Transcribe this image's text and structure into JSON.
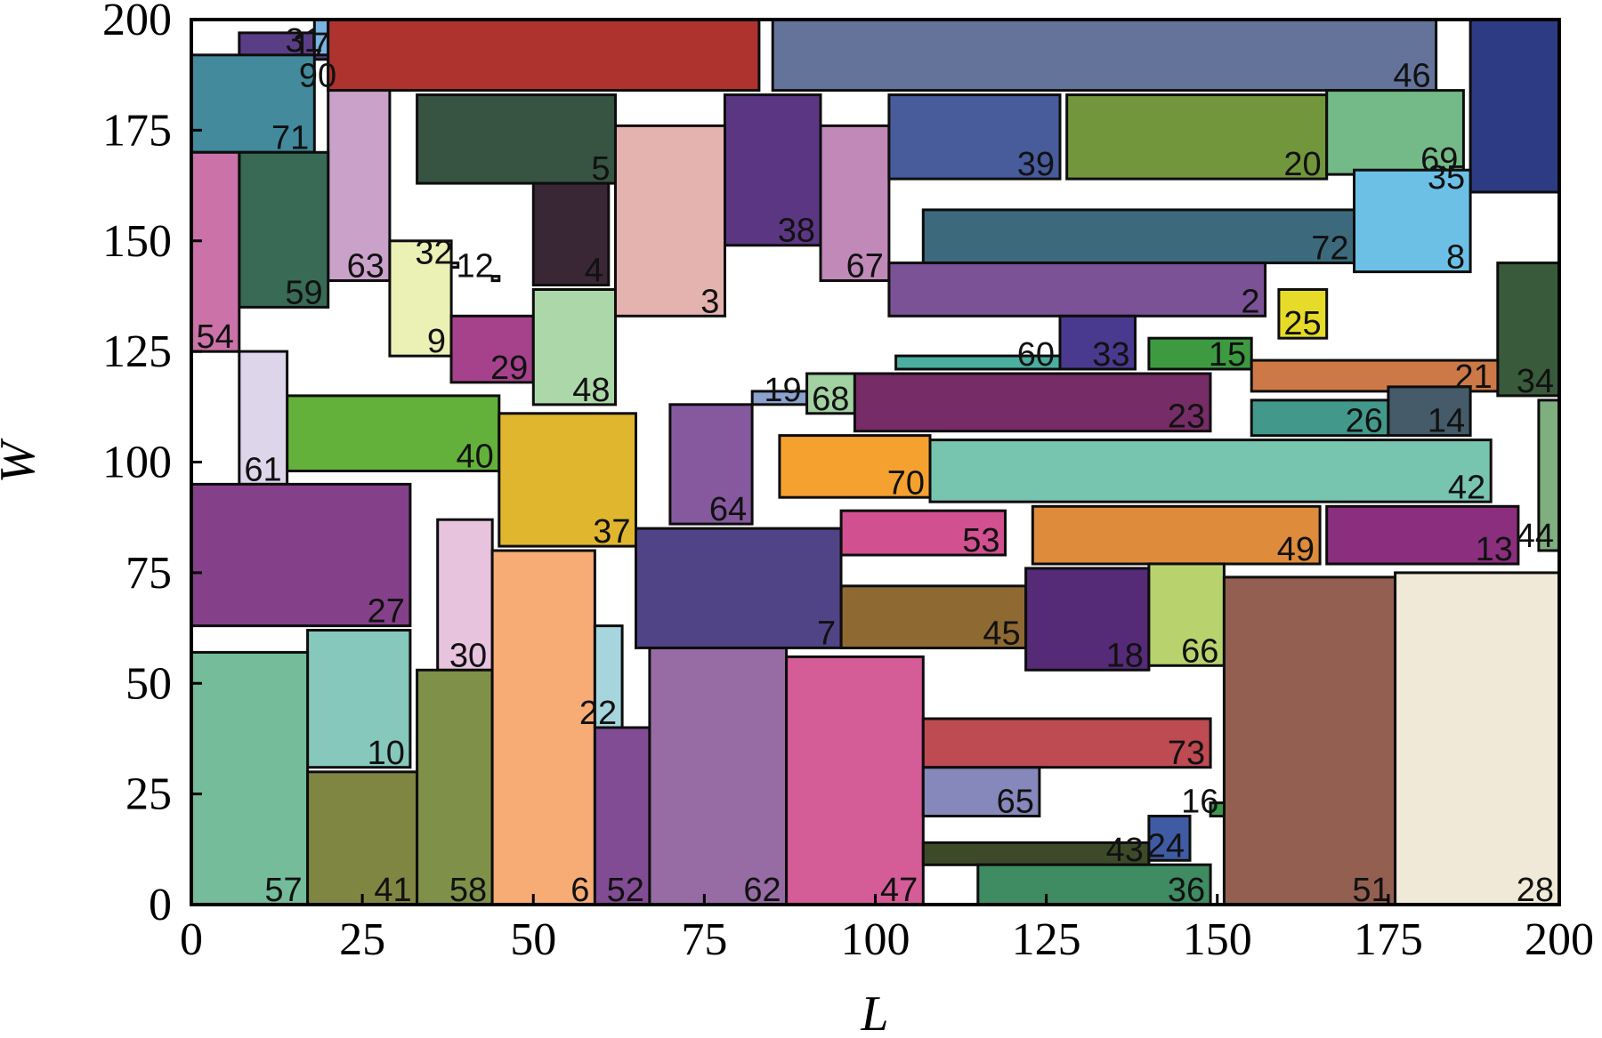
{
  "chart_data": {
    "type": "rectangle-packing",
    "xlabel": "L",
    "ylabel": "W",
    "xlim": [
      0,
      200
    ],
    "ylim": [
      0,
      200
    ],
    "xticks": [
      "0",
      "25",
      "50",
      "75",
      "100",
      "125",
      "150",
      "175",
      "200"
    ],
    "yticks": [
      "0",
      "25",
      "50",
      "75",
      "100",
      "125",
      "150",
      "175",
      "200"
    ],
    "rects": [
      {
        "id": "17",
        "x": 7,
        "y": 191,
        "w": 14,
        "h": 6,
        "color": "#5a3e85"
      },
      {
        "id": "31",
        "x": 18,
        "y": 192,
        "w": 2,
        "h": 8,
        "color": "#79b4e2"
      },
      {
        "id": "90",
        "x": 20,
        "y": 184,
        "w": 2,
        "h": 8,
        "color": "#e2e2e2"
      },
      {
        "id": "",
        "x": 20,
        "y": 184,
        "w": 63,
        "h": 16,
        "color": "#ae332f"
      },
      {
        "id": "46",
        "x": 85,
        "y": 184,
        "w": 97,
        "h": 16,
        "color": "#637399"
      },
      {
        "id": "",
        "x": 187,
        "y": 161,
        "w": 13,
        "h": 39,
        "color": "#2d3a84"
      },
      {
        "id": "71",
        "x": 0,
        "y": 170,
        "w": 18,
        "h": 22,
        "color": "#428a9c"
      },
      {
        "id": "5",
        "x": 33,
        "y": 163,
        "w": 29,
        "h": 20,
        "color": "#375342"
      },
      {
        "id": "63",
        "x": 20,
        "y": 141,
        "w": 9,
        "h": 43,
        "color": "#c9a1c9"
      },
      {
        "id": "59",
        "x": 7,
        "y": 135,
        "w": 13,
        "h": 35,
        "color": "#386a55"
      },
      {
        "id": "54",
        "x": 0,
        "y": 125,
        "w": 7,
        "h": 45,
        "color": "#cb72a8"
      },
      {
        "id": "38",
        "x": 78,
        "y": 149,
        "w": 14,
        "h": 34,
        "color": "#5b3783"
      },
      {
        "id": "67",
        "x": 92,
        "y": 141,
        "w": 10,
        "h": 35,
        "color": "#c089b8"
      },
      {
        "id": "39",
        "x": 102,
        "y": 164,
        "w": 25,
        "h": 19,
        "color": "#485b9b"
      },
      {
        "id": "20",
        "x": 128,
        "y": 164,
        "w": 38,
        "h": 19,
        "color": "#72963c"
      },
      {
        "id": "69",
        "x": 166,
        "y": 165,
        "w": 20,
        "h": 19,
        "color": "#74ba88"
      },
      {
        "id": "35",
        "x": 186,
        "y": 161,
        "w": 1,
        "h": 4,
        "color": "#2d3a84"
      },
      {
        "id": "8",
        "x": 170,
        "y": 143,
        "w": 17,
        "h": 23,
        "color": "#6cc0e6"
      },
      {
        "id": "72",
        "x": 107,
        "y": 145,
        "w": 63,
        "h": 12,
        "color": "#3c6a7c"
      },
      {
        "id": "2",
        "x": 102,
        "y": 133,
        "w": 55,
        "h": 12,
        "color": "#7b5295"
      },
      {
        "id": "3",
        "x": 62,
        "y": 133,
        "w": 16,
        "h": 43,
        "color": "#e4b3b0"
      },
      {
        "id": "4",
        "x": 50,
        "y": 140,
        "w": 11,
        "h": 23,
        "color": "#3a2736"
      },
      {
        "id": "32",
        "x": 38,
        "y": 144,
        "w": 1,
        "h": 1,
        "color": "#d0d0d0"
      },
      {
        "id": "12",
        "x": 44,
        "y": 141,
        "w": 1,
        "h": 1,
        "color": "#d0d0d0"
      },
      {
        "id": "9",
        "x": 29,
        "y": 124,
        "w": 9,
        "h": 26,
        "color": "#ebf0b5"
      },
      {
        "id": "29",
        "x": 38,
        "y": 118,
        "w": 12,
        "h": 15,
        "color": "#a5428b"
      },
      {
        "id": "48",
        "x": 50,
        "y": 113,
        "w": 12,
        "h": 26,
        "color": "#acd7a8"
      },
      {
        "id": "60",
        "x": 103,
        "y": 121,
        "w": 24,
        "h": 3,
        "color": "#4aafa0"
      },
      {
        "id": "33",
        "x": 127,
        "y": 121,
        "w": 11,
        "h": 12,
        "color": "#4a3a8f"
      },
      {
        "id": "15",
        "x": 140,
        "y": 121,
        "w": 15,
        "h": 7,
        "color": "#3d9a41"
      },
      {
        "id": "25",
        "x": 159,
        "y": 128,
        "w": 7,
        "h": 11,
        "color": "#e6db28"
      },
      {
        "id": "34",
        "x": 191,
        "y": 115,
        "w": 9,
        "h": 30,
        "color": "#3a5a3c"
      },
      {
        "id": "21",
        "x": 155,
        "y": 116,
        "w": 36,
        "h": 7,
        "color": "#cd7947"
      },
      {
        "id": "19",
        "x": 82,
        "y": 113,
        "w": 8,
        "h": 3,
        "color": "#8ba2cf"
      },
      {
        "id": "68",
        "x": 90,
        "y": 111,
        "w": 7,
        "h": 9,
        "color": "#a2d1a2"
      },
      {
        "id": "23",
        "x": 97,
        "y": 107,
        "w": 52,
        "h": 13,
        "color": "#762c66"
      },
      {
        "id": "26",
        "x": 155,
        "y": 106,
        "w": 20,
        "h": 8,
        "color": "#42998b"
      },
      {
        "id": "14",
        "x": 175,
        "y": 106,
        "w": 12,
        "h": 11,
        "color": "#465b69"
      },
      {
        "id": "44",
        "x": 197,
        "y": 80,
        "w": 3,
        "h": 34,
        "color": "#7fae7f"
      },
      {
        "id": "40",
        "x": 14,
        "y": 98,
        "w": 31,
        "h": 17,
        "color": "#63b13a"
      },
      {
        "id": "61",
        "x": 7,
        "y": 95,
        "w": 7,
        "h": 30,
        "color": "#ddd6ea"
      },
      {
        "id": "37",
        "x": 45,
        "y": 81,
        "w": 20,
        "h": 30,
        "color": "#e1b62f"
      },
      {
        "id": "64",
        "x": 70,
        "y": 86,
        "w": 12,
        "h": 27,
        "color": "#86599f"
      },
      {
        "id": "70",
        "x": 86,
        "y": 92,
        "w": 22,
        "h": 14,
        "color": "#f5a130"
      },
      {
        "id": "42",
        "x": 108,
        "y": 91,
        "w": 82,
        "h": 14,
        "color": "#77c4af"
      },
      {
        "id": "27",
        "x": 0,
        "y": 63,
        "w": 32,
        "h": 32,
        "color": "#844189"
      },
      {
        "id": "53",
        "x": 95,
        "y": 79,
        "w": 24,
        "h": 10,
        "color": "#d1508f"
      },
      {
        "id": "49",
        "x": 123,
        "y": 77,
        "w": 42,
        "h": 13,
        "color": "#de8b3b"
      },
      {
        "id": "13",
        "x": 166,
        "y": 77,
        "w": 28,
        "h": 13,
        "color": "#8c2e7e"
      },
      {
        "id": "7",
        "x": 65,
        "y": 58,
        "w": 30,
        "h": 27,
        "color": "#514486"
      },
      {
        "id": "30",
        "x": 36,
        "y": 53,
        "w": 8,
        "h": 34,
        "color": "#e8c3dd"
      },
      {
        "id": "45",
        "x": 95,
        "y": 58,
        "w": 27,
        "h": 14,
        "color": "#8f6932"
      },
      {
        "id": "18",
        "x": 122,
        "y": 53,
        "w": 18,
        "h": 23,
        "color": "#552a76"
      },
      {
        "id": "66",
        "x": 140,
        "y": 54,
        "w": 11,
        "h": 23,
        "color": "#b8d36d"
      },
      {
        "id": "28",
        "x": 176,
        "y": 0,
        "w": 24,
        "h": 75,
        "color": "#f1e9d8"
      },
      {
        "id": "51",
        "x": 151,
        "y": 0,
        "w": 25,
        "h": 74,
        "color": "#935f51"
      },
      {
        "id": "10",
        "x": 17,
        "y": 31,
        "w": 15,
        "h": 31,
        "color": "#86c8bb"
      },
      {
        "id": "57",
        "x": 0,
        "y": 0,
        "w": 17,
        "h": 57,
        "color": "#74bc9a"
      },
      {
        "id": "41",
        "x": 17,
        "y": 0,
        "w": 16,
        "h": 30,
        "color": "#7f8642"
      },
      {
        "id": "58",
        "x": 33,
        "y": 0,
        "w": 11,
        "h": 53,
        "color": "#7f9149"
      },
      {
        "id": "6",
        "x": 44,
        "y": 0,
        "w": 15,
        "h": 80,
        "color": "#f7ac76"
      },
      {
        "id": "22",
        "x": 59,
        "y": 40,
        "w": 4,
        "h": 23,
        "color": "#a6d5de"
      },
      {
        "id": "52",
        "x": 59,
        "y": 0,
        "w": 8,
        "h": 40,
        "color": "#824c94"
      },
      {
        "id": "62",
        "x": 67,
        "y": 0,
        "w": 20,
        "h": 58,
        "color": "#976ca4"
      },
      {
        "id": "47",
        "x": 87,
        "y": 0,
        "w": 20,
        "h": 56,
        "color": "#d45c97"
      },
      {
        "id": "73",
        "x": 107,
        "y": 31,
        "w": 42,
        "h": 11,
        "color": "#be4a52"
      },
      {
        "id": "65",
        "x": 107,
        "y": 20,
        "w": 17,
        "h": 11,
        "color": "#8688bb"
      },
      {
        "id": "43",
        "x": 107,
        "y": 9,
        "w": 33,
        "h": 5,
        "color": "#3c4a29"
      },
      {
        "id": "24",
        "x": 140,
        "y": 10,
        "w": 6,
        "h": 10,
        "color": "#3f5ba3"
      },
      {
        "id": "36",
        "x": 115,
        "y": 0,
        "w": 34,
        "h": 9,
        "color": "#3f8b62"
      },
      {
        "id": "16",
        "x": 149,
        "y": 20,
        "w": 2,
        "h": 3,
        "color": "#3a9a4e"
      }
    ]
  }
}
